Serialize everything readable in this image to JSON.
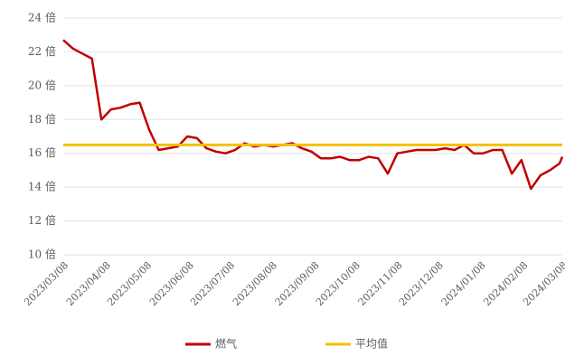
{
  "chart_data": {
    "type": "line",
    "x": [
      "2023/03/08",
      "2023/03/15",
      "2023/03/22",
      "2023/03/29",
      "2023/04/05",
      "2023/04/12",
      "2023/04/19",
      "2023/04/26",
      "2023/05/03",
      "2023/05/10",
      "2023/05/17",
      "2023/05/24",
      "2023/05/31",
      "2023/06/07",
      "2023/06/14",
      "2023/06/21",
      "2023/06/28",
      "2023/07/05",
      "2023/07/12",
      "2023/07/19",
      "2023/07/26",
      "2023/08/02",
      "2023/08/09",
      "2023/08/16",
      "2023/08/23",
      "2023/08/30",
      "2023/09/06",
      "2023/09/13",
      "2023/09/20",
      "2023/09/27",
      "2023/10/04",
      "2023/10/11",
      "2023/10/18",
      "2023/10/25",
      "2023/11/01",
      "2023/11/08",
      "2023/11/15",
      "2023/11/22",
      "2023/11/29",
      "2023/12/06",
      "2023/12/13",
      "2023/12/20",
      "2023/12/27",
      "2024/01/03",
      "2024/01/10",
      "2024/01/17",
      "2024/01/24",
      "2024/01/31",
      "2024/02/07",
      "2024/02/14",
      "2024/02/21",
      "2024/02/28",
      "2024/03/06",
      "2024/03/08"
    ],
    "series": [
      {
        "name": "燃气",
        "color": "#c00000",
        "values": [
          22.7,
          22.2,
          21.9,
          21.6,
          18.0,
          18.6,
          18.7,
          18.9,
          19.0,
          17.4,
          16.2,
          16.3,
          16.4,
          17.0,
          16.9,
          16.3,
          16.1,
          16.0,
          16.2,
          16.6,
          16.4,
          16.5,
          16.4,
          16.5,
          16.6,
          16.3,
          16.1,
          15.7,
          15.7,
          15.8,
          15.6,
          15.6,
          15.8,
          15.7,
          14.8,
          16.0,
          16.1,
          16.2,
          16.2,
          16.2,
          16.3,
          16.2,
          16.5,
          16.0,
          16.0,
          16.2,
          16.2,
          14.8,
          15.6,
          13.9,
          14.7,
          15.0,
          15.4,
          15.8
        ]
      },
      {
        "name": "平均值",
        "color": "#f5c000",
        "values": [
          16.5,
          16.5,
          16.5,
          16.5,
          16.5,
          16.5,
          16.5,
          16.5,
          16.5,
          16.5,
          16.5,
          16.5,
          16.5,
          16.5,
          16.5,
          16.5,
          16.5,
          16.5,
          16.5,
          16.5,
          16.5,
          16.5,
          16.5,
          16.5,
          16.5,
          16.5,
          16.5,
          16.5,
          16.5,
          16.5,
          16.5,
          16.5,
          16.5,
          16.5,
          16.5,
          16.5,
          16.5,
          16.5,
          16.5,
          16.5,
          16.5,
          16.5,
          16.5,
          16.5,
          16.5,
          16.5,
          16.5,
          16.5,
          16.5,
          16.5,
          16.5,
          16.5,
          16.5,
          16.5
        ]
      }
    ],
    "xticks": [
      "2023/03/08",
      "2023/04/08",
      "2023/05/08",
      "2023/06/08",
      "2023/07/08",
      "2023/08/08",
      "2023/09/08",
      "2023/10/08",
      "2023/11/08",
      "2023/12/08",
      "2024/01/08",
      "2024/02/08",
      "2024/03/08"
    ],
    "ylim": [
      10,
      24
    ],
    "yticks": [
      {
        "value": 10,
        "label": "10 倍"
      },
      {
        "value": 12,
        "label": "12 倍"
      },
      {
        "value": 14,
        "label": "14 倍"
      },
      {
        "value": 16,
        "label": "16 倍"
      },
      {
        "value": 18,
        "label": "18 倍"
      },
      {
        "value": 20,
        "label": "20 倍"
      },
      {
        "value": 22,
        "label": "22 倍"
      },
      {
        "value": 24,
        "label": "24 倍"
      }
    ],
    "grid": true,
    "legend": "bottom"
  }
}
